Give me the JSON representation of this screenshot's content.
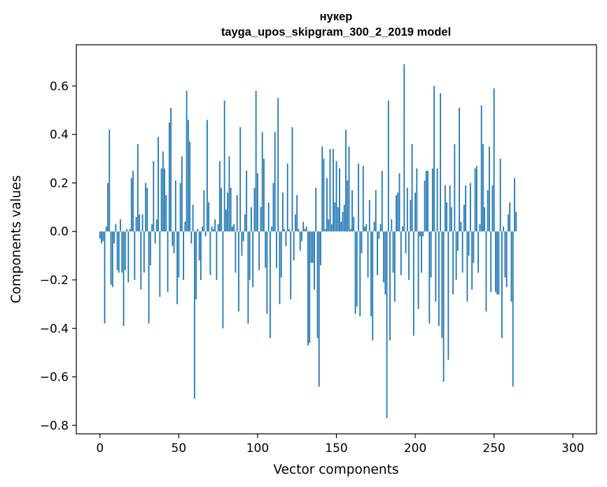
{
  "chart_data": {
    "type": "bar",
    "title_line1": "нукер",
    "title_line2": "tayga_upos_skipgram_300_2_2019 model",
    "xlabel": "Vector components",
    "ylabel": "Components values",
    "xlim": [
      -15,
      315
    ],
    "ylim": [
      -0.835,
      0.77
    ],
    "xticks": [
      0,
      50,
      100,
      150,
      200,
      250,
      300
    ],
    "xtick_labels": [
      "0",
      "50",
      "100",
      "150",
      "200",
      "250",
      "300"
    ],
    "yticks": [
      -0.8,
      -0.6,
      -0.4,
      -0.2,
      0.0,
      0.2,
      0.4,
      0.6
    ],
    "ytick_labels": [
      "−0.8",
      "−0.6",
      "−0.4",
      "−0.2",
      "0.0",
      "0.2",
      "0.4",
      "0.6"
    ],
    "bar_color": "#1f77b4",
    "values": [
      -0.03,
      -0.05,
      -0.04,
      -0.38,
      0.02,
      0.2,
      0.42,
      -0.22,
      -0.23,
      -0.05,
      0.03,
      -0.16,
      -0.17,
      0.05,
      -0.17,
      -0.39,
      -0.16,
      0.01,
      -0.21,
      0.01,
      0.22,
      0.25,
      -0.2,
      0.06,
      0.36,
      0.07,
      -0.24,
      0.07,
      -0.17,
      0.2,
      0.18,
      -0.38,
      -0.14,
      0.03,
      0.29,
      -0.05,
      0.05,
      0.39,
      -0.27,
      0.26,
      0.33,
      0.26,
      0.15,
      -0.25,
      0.45,
      0.51,
      -0.06,
      -0.09,
      0.21,
      -0.3,
      -0.19,
      0.2,
      0.31,
      -0.2,
      0.04,
      0.58,
      0.46,
      0.37,
      -0.05,
      0.11,
      -0.69,
      -0.28,
      0.01,
      -0.12,
      -0.2,
      0.02,
      0.17,
      -0.02,
      0.46,
      0.12,
      -0.18,
      0.02,
      0.01,
      0.05,
      -0.2,
      0.03,
      0.29,
      0.18,
      -0.4,
      0.54,
      0.09,
      0.16,
      0.31,
      0.18,
      0.02,
      0.03,
      -0.17,
      0.15,
      -0.33,
      0.43,
      -0.1,
      -0.04,
      0.07,
      0.25,
      -0.38,
      -0.2,
      0.1,
      -0.23,
      0.18,
      0.58,
      0.24,
      -0.16,
      0.1,
      0.41,
      0.3,
      -0.15,
      -0.34,
      0.12,
      -0.44,
      0.02,
      0.2,
      0.41,
      -0.15,
      0.55,
      -0.3,
      -0.19,
      0.16,
      0.01,
      -0.06,
      0.28,
      0.01,
      -0.28,
      0.43,
      -0.12,
      0.07,
      0.15,
      0.01,
      -0.08,
      -0.04,
      0.04,
      0.01,
      0.02,
      -0.47,
      -0.46,
      -0.13,
      -0.13,
      -0.24,
      0.18,
      -0.44,
      -0.64,
      -0.14,
      0.35,
      0.3,
      0.01,
      0.22,
      0.05,
      0.34,
      0.03,
      0.34,
      0.12,
      0.29,
      0.1,
      0.26,
      0.04,
      0.08,
      0.11,
      0.42,
      0.21,
      0.35,
      0.01,
      0.17,
      0.06,
      -0.34,
      -0.31,
      0.28,
      -0.35,
      -0.09,
      0.27,
      0.02,
      0.03,
      -0.19,
      0.13,
      -0.35,
      -0.45,
      0.04,
      0.17,
      -0.18,
      -0.03,
      0.03,
      0.25,
      -0.21,
      -0.26,
      -0.77,
      0.54,
      -0.45,
      0.05,
      -0.17,
      -0.29,
      0.15,
      0.16,
      0.24,
      -0.18,
      0.02,
      0.69,
      -0.09,
      0.18,
      -0.2,
      0.13,
      0.36,
      -0.43,
      0.16,
      0.26,
      -0.32,
      -0.02,
      -0.17,
      -0.02,
      0.21,
      0.25,
      0.25,
      -0.38,
      -0.19,
      0.26,
      0.6,
      -0.29,
      0.26,
      -0.39,
      0.57,
      -0.44,
      -0.62,
      0.19,
      0.12,
      -0.53,
      0.19,
      0.1,
      -0.26,
      0.36,
      -0.2,
      -0.08,
      0.51,
      0.04,
      -0.17,
      0.11,
      0.19,
      -0.29,
      -0.1,
      0.2,
      -0.24,
      -0.13,
      0.26,
      0.27,
      -0.17,
      0.03,
      0.52,
      0.36,
      0.1,
      -0.33,
      0.17,
      0.35,
      -0.25,
      0.19,
      0.59,
      -0.25,
      -0.26,
      -0.26,
      0.3,
      -0.44,
      0.02,
      -0.19,
      -0.23,
      0.07,
      0.12,
      -0.29,
      -0.64,
      0.22,
      0.08
    ]
  }
}
